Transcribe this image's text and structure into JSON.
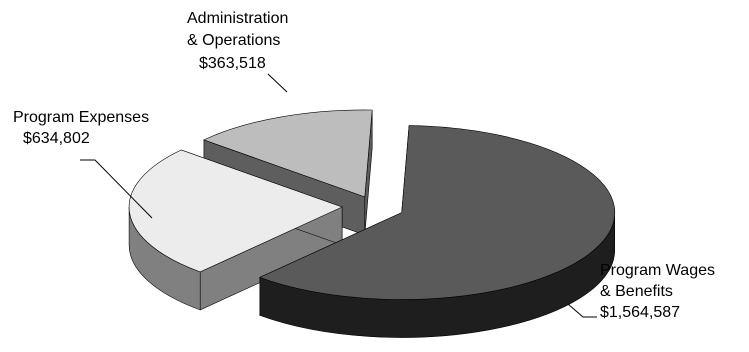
{
  "chart_data": {
    "type": "pie",
    "style": "3d-exploded",
    "legend": "none",
    "slices": [
      {
        "label_lines": [
          "Program Wages",
          "& Benefits"
        ],
        "value": 1564587,
        "value_label": "$1,564,587",
        "top_color": "#5a5a5a",
        "side_color": "#1e1e1e"
      },
      {
        "label_lines": [
          "Program Expenses"
        ],
        "value": 634802,
        "value_label": "$634,802",
        "top_color": "#ececec",
        "side_color": "#808080"
      },
      {
        "label_lines": [
          "Administration",
          "& Operations"
        ],
        "value": 363518,
        "value_label": "$363,518",
        "top_color": "#bdbdbd",
        "side_color": "#5e5e5e"
      }
    ]
  }
}
